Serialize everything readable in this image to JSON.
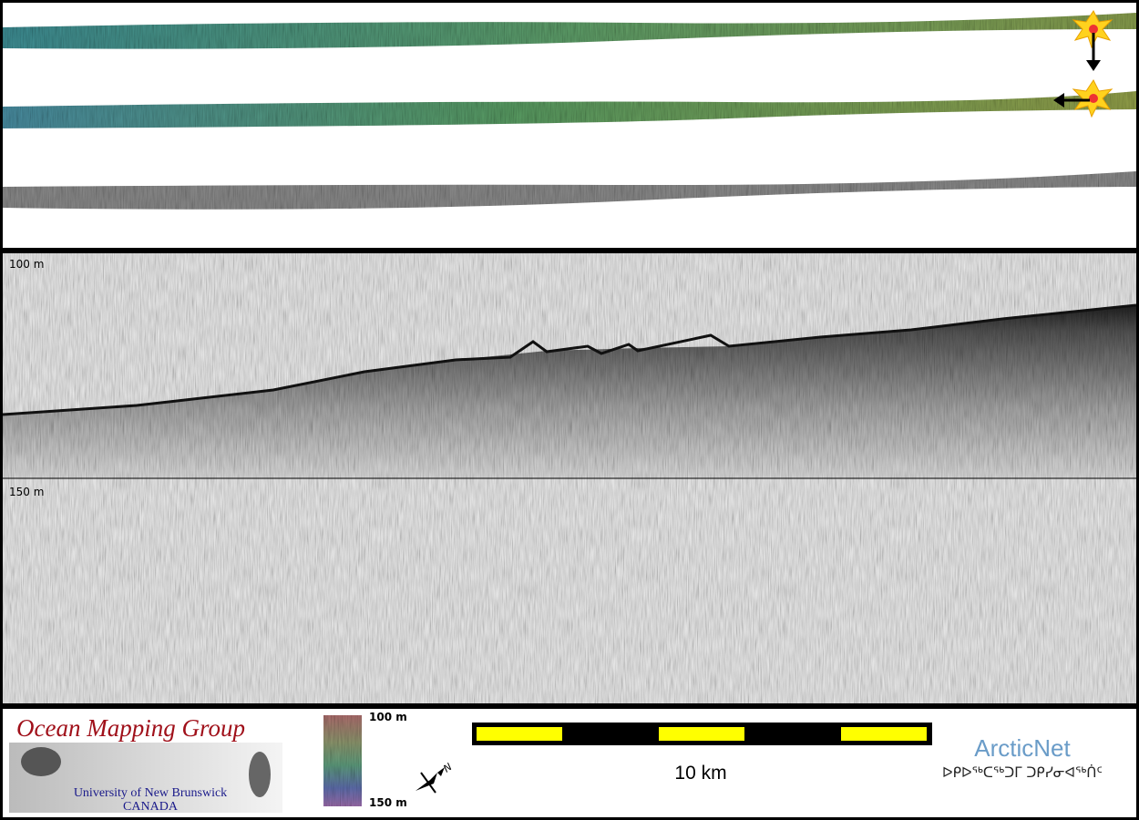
{
  "profile": {
    "depth_top": "100 m",
    "depth_mid": "150 m"
  },
  "legend": {
    "top": "100 m",
    "bottom": "150 m"
  },
  "scale": {
    "label": "10 km"
  },
  "compass": {
    "label": "N"
  },
  "logo": {
    "title": "Ocean Mapping Group",
    "university": "University of New Brunswick",
    "country": "CANADA"
  },
  "partner": {
    "name": "ArcticNet",
    "syllabics": "ᐅᑭᐅᖅᑕᖅᑐᒥ ᑐᑭᓯᓂᐊᖅᑏᑦ"
  }
}
